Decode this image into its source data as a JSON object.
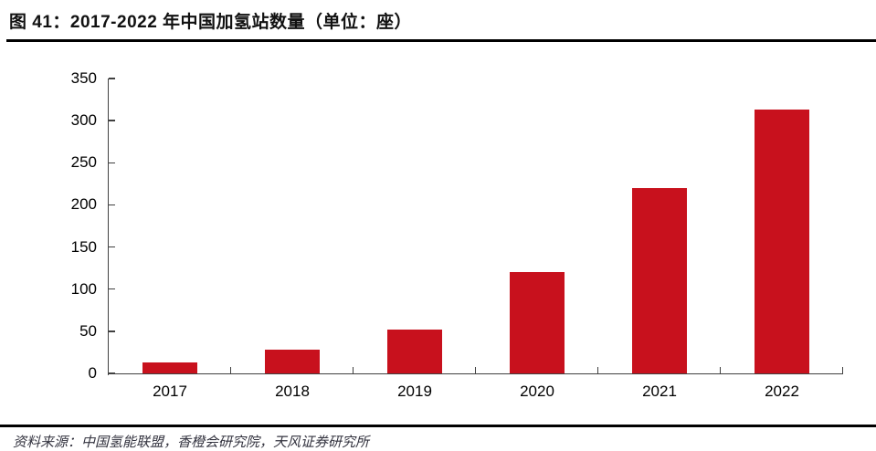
{
  "figure": {
    "title": "图 41：2017-2022 年中国加氢站数量（单位：座）",
    "source_note": "资料来源：中国氢能联盟，香橙会研究院，天风证券研究所"
  },
  "chart_data": {
    "type": "bar",
    "title": "2017-2022 年中国加氢站数量",
    "unit": "座",
    "categories": [
      "2017",
      "2018",
      "2019",
      "2020",
      "2021",
      "2022"
    ],
    "values": [
      13,
      28,
      52,
      120,
      220,
      313
    ],
    "yticks": [
      0,
      50,
      100,
      150,
      200,
      250,
      300,
      350
    ],
    "ylim": [
      0,
      350
    ],
    "ytick_step": 50,
    "xlabel": "",
    "ylabel": "",
    "grid": false,
    "legend": "none",
    "bar_color": "#C8111D",
    "axis_color": "#404040",
    "text_color": "#000000"
  }
}
